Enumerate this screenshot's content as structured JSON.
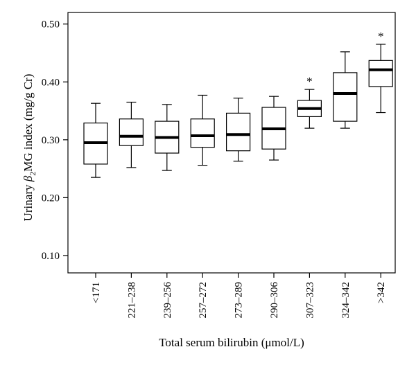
{
  "chart_data": {
    "type": "box",
    "xlabel": "Total serum bilirubin (μmol/L)",
    "ylabel_parts": {
      "before": "Urinary ",
      "beta": "β",
      "sub": "2",
      "after": "MG index (mg/g Cr)"
    },
    "ylim": [
      0.07,
      0.52
    ],
    "yticks": [
      0.1,
      0.2,
      0.3,
      0.4,
      0.5
    ],
    "ytick_labels": [
      "0.10",
      "0.20",
      "0.30",
      "0.40",
      "0.50"
    ],
    "grid": false,
    "categories": [
      "<171",
      "221–238",
      "239–256",
      "257–272",
      "273–289",
      "290–306",
      "307–323",
      "324–342",
      ">342"
    ],
    "boxes": [
      {
        "whisker_low": 0.235,
        "q1": 0.258,
        "median": 0.295,
        "q3": 0.329,
        "whisker_high": 0.363,
        "significant": false
      },
      {
        "whisker_low": 0.252,
        "q1": 0.29,
        "median": 0.306,
        "q3": 0.336,
        "whisker_high": 0.365,
        "significant": false
      },
      {
        "whisker_low": 0.247,
        "q1": 0.277,
        "median": 0.304,
        "q3": 0.332,
        "whisker_high": 0.361,
        "significant": false
      },
      {
        "whisker_low": 0.256,
        "q1": 0.287,
        "median": 0.307,
        "q3": 0.336,
        "whisker_high": 0.377,
        "significant": false
      },
      {
        "whisker_low": 0.263,
        "q1": 0.281,
        "median": 0.309,
        "q3": 0.346,
        "whisker_high": 0.372,
        "significant": false
      },
      {
        "whisker_low": 0.265,
        "q1": 0.284,
        "median": 0.319,
        "q3": 0.356,
        "whisker_high": 0.375,
        "significant": false
      },
      {
        "whisker_low": 0.32,
        "q1": 0.34,
        "median": 0.354,
        "q3": 0.368,
        "whisker_high": 0.387,
        "significant": true
      },
      {
        "whisker_low": 0.32,
        "q1": 0.332,
        "median": 0.38,
        "q3": 0.416,
        "whisker_high": 0.452,
        "significant": false
      },
      {
        "whisker_low": 0.347,
        "q1": 0.392,
        "median": 0.421,
        "q3": 0.437,
        "whisker_high": 0.465,
        "significant": true
      }
    ],
    "significance_marker": "*"
  }
}
